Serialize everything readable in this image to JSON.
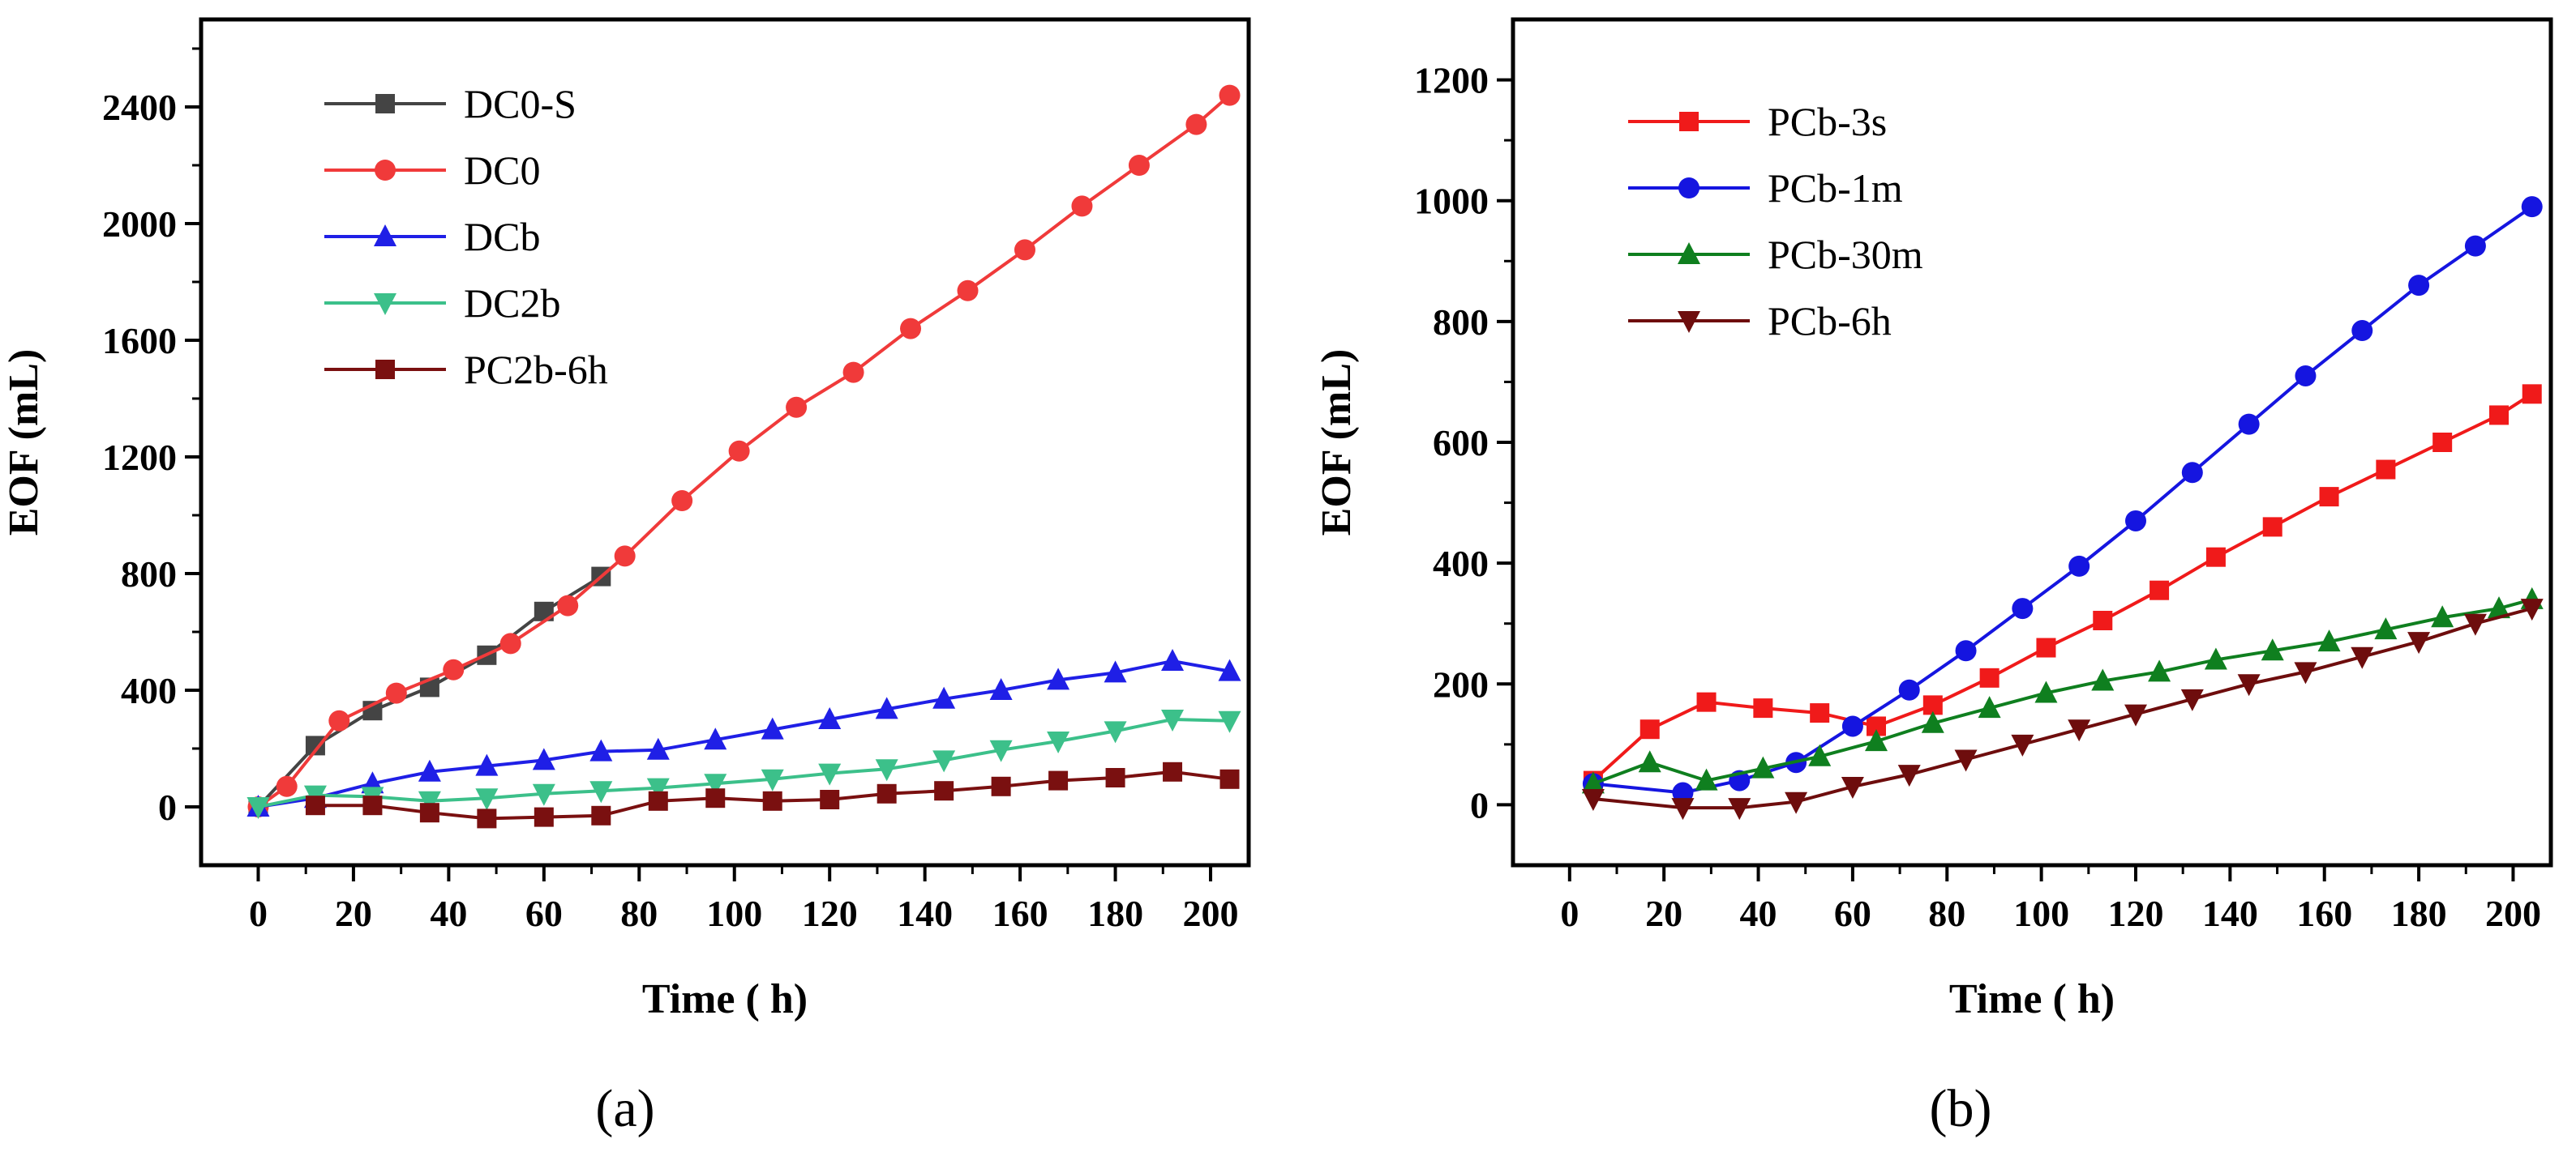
{
  "chart_data": [
    {
      "type": "line",
      "panel_label": "(a)",
      "xlabel": "Time ( h)",
      "ylabel": "EOF (mL)",
      "xlim": [
        -12,
        208
      ],
      "ylim": [
        -200,
        2700
      ],
      "xticks": [
        0,
        20,
        40,
        60,
        80,
        100,
        120,
        140,
        160,
        180,
        200
      ],
      "yticks": [
        0,
        400,
        800,
        1200,
        1600,
        2000,
        2400
      ],
      "legend_position": "top-left",
      "series": [
        {
          "name": "DC0-S",
          "color": "#444444",
          "marker": "square",
          "x": [
            0,
            12,
            24,
            36,
            48,
            60,
            72
          ],
          "y": [
            0,
            210,
            330,
            410,
            520,
            670,
            790
          ]
        },
        {
          "name": "DC0",
          "color": "#f03a3a",
          "marker": "circle",
          "x": [
            0,
            6,
            17,
            29,
            41,
            53,
            65,
            77,
            89,
            101,
            113,
            125,
            137,
            149,
            161,
            173,
            185,
            197,
            204
          ],
          "y": [
            0,
            70,
            295,
            390,
            470,
            560,
            690,
            860,
            1050,
            1220,
            1370,
            1490,
            1640,
            1770,
            1910,
            2060,
            2200,
            2340,
            2440
          ]
        },
        {
          "name": "DCb",
          "color": "#1f1fe6",
          "marker": "triangle-up",
          "x": [
            0,
            12,
            24,
            36,
            48,
            60,
            72,
            84,
            96,
            108,
            120,
            132,
            144,
            156,
            168,
            180,
            192,
            204
          ],
          "y": [
            0,
            30,
            80,
            120,
            140,
            160,
            190,
            195,
            230,
            265,
            300,
            335,
            370,
            400,
            435,
            460,
            500,
            465
          ]
        },
        {
          "name": "DC2b",
          "color": "#3cc08a",
          "marker": "triangle-down",
          "x": [
            0,
            12,
            24,
            36,
            48,
            60,
            72,
            84,
            96,
            108,
            120,
            132,
            144,
            156,
            168,
            180,
            192,
            204
          ],
          "y": [
            0,
            40,
            35,
            20,
            30,
            45,
            55,
            65,
            80,
            95,
            115,
            130,
            160,
            195,
            225,
            260,
            300,
            295
          ]
        },
        {
          "name": "PC2b-6h",
          "color": "#7a1010",
          "marker": "square",
          "x": [
            12,
            24,
            36,
            48,
            60,
            72,
            84,
            96,
            108,
            120,
            132,
            144,
            156,
            168,
            180,
            192,
            204
          ],
          "y": [
            5,
            5,
            -20,
            -40,
            -35,
            -30,
            20,
            30,
            20,
            25,
            45,
            55,
            70,
            90,
            100,
            120,
            95
          ]
        }
      ]
    },
    {
      "type": "line",
      "panel_label": "(b)",
      "xlabel": "Time ( h)",
      "ylabel": "EOF (mL)",
      "xlim": [
        -12,
        208
      ],
      "ylim": [
        -100,
        1300
      ],
      "xticks": [
        0,
        20,
        40,
        60,
        80,
        100,
        120,
        140,
        160,
        180,
        200
      ],
      "yticks": [
        0,
        200,
        400,
        600,
        800,
        1000,
        1200
      ],
      "legend_position": "top-left",
      "series": [
        {
          "name": "PCb-3s",
          "color": "#f01a1a",
          "marker": "square",
          "x": [
            5,
            17,
            29,
            41,
            53,
            65,
            77,
            89,
            101,
            113,
            125,
            137,
            149,
            161,
            173,
            185,
            197,
            204
          ],
          "y": [
            40,
            125,
            170,
            160,
            152,
            130,
            165,
            210,
            260,
            305,
            355,
            410,
            460,
            510,
            555,
            600,
            645,
            680
          ]
        },
        {
          "name": "PCb-1m",
          "color": "#1515e0",
          "marker": "circle",
          "x": [
            5,
            24,
            36,
            48,
            60,
            72,
            84,
            96,
            108,
            120,
            132,
            144,
            156,
            168,
            180,
            192,
            204
          ],
          "y": [
            35,
            20,
            40,
            70,
            130,
            190,
            255,
            325,
            395,
            470,
            550,
            630,
            710,
            785,
            860,
            925,
            990
          ]
        },
        {
          "name": "PCb-30m",
          "color": "#0f7f1f",
          "marker": "triangle-up",
          "x": [
            5,
            17,
            29,
            41,
            53,
            65,
            77,
            89,
            101,
            113,
            125,
            137,
            149,
            161,
            173,
            185,
            197,
            204
          ],
          "y": [
            35,
            70,
            40,
            60,
            80,
            105,
            135,
            160,
            185,
            205,
            220,
            240,
            255,
            270,
            290,
            310,
            325,
            340
          ]
        },
        {
          "name": "PCb-6h",
          "color": "#6e0d0d",
          "marker": "triangle-down",
          "x": [
            5,
            24,
            36,
            48,
            60,
            72,
            84,
            96,
            108,
            120,
            132,
            144,
            156,
            168,
            180,
            192,
            204
          ],
          "y": [
            10,
            -5,
            -5,
            5,
            30,
            50,
            75,
            100,
            125,
            150,
            175,
            200,
            220,
            245,
            270,
            300,
            325
          ]
        }
      ]
    }
  ]
}
